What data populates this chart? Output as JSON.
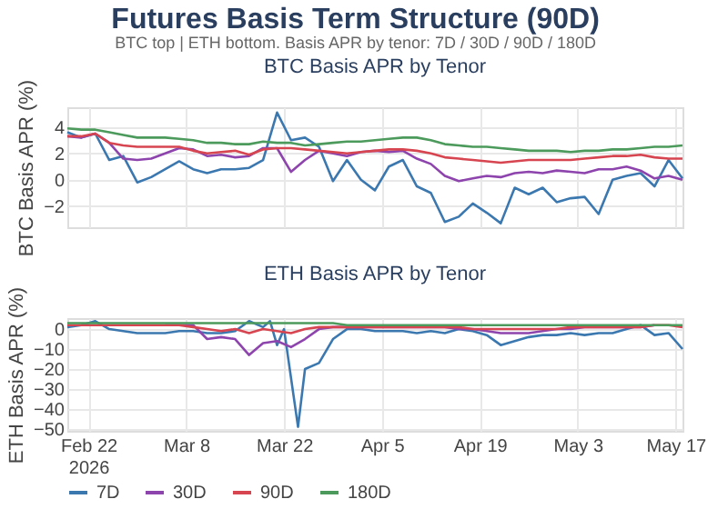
{
  "chart_data": [
    {
      "type": "line",
      "title": "Futures Basis Term Structure (90D)",
      "subtitle": "BTC top | ETH bottom. Basis APR by tenor: 7D / 30D / 90D / 180D",
      "annotations": [
        "BTC Basis APR by Tenor"
      ],
      "ylabel": "BTC Basis APR (%)",
      "x": [
        "2026-02-19",
        "2026-02-21",
        "2026-02-23",
        "2026-02-25",
        "2026-02-27",
        "2026-03-01",
        "2026-03-03",
        "2026-03-05",
        "2026-03-07",
        "2026-03-09",
        "2026-03-11",
        "2026-03-13",
        "2026-03-15",
        "2026-03-17",
        "2026-03-19",
        "2026-03-21",
        "2026-03-23",
        "2026-03-25",
        "2026-03-27",
        "2026-03-29",
        "2026-03-31",
        "2026-04-02",
        "2026-04-04",
        "2026-04-06",
        "2026-04-08",
        "2026-04-10",
        "2026-04-12",
        "2026-04-14",
        "2026-04-16",
        "2026-04-18",
        "2026-04-20",
        "2026-04-22",
        "2026-04-24",
        "2026-04-26",
        "2026-04-28",
        "2026-04-30",
        "2026-05-02",
        "2026-05-04",
        "2026-05-06",
        "2026-05-08",
        "2026-05-10",
        "2026-05-12",
        "2026-05-14",
        "2026-05-16",
        "2026-05-18"
      ],
      "series": [
        {
          "name": "7D",
          "color": "#3c78b0",
          "values": [
            3.6,
            3.2,
            3.5,
            1.5,
            1.8,
            -0.2,
            0.2,
            0.8,
            1.4,
            0.8,
            0.5,
            0.8,
            0.8,
            0.9,
            1.5,
            5.1,
            3.0,
            3.2,
            2.5,
            -0.1,
            1.5,
            0.0,
            -0.8,
            1.0,
            1.5,
            -0.5,
            -1.0,
            -3.2,
            -2.8,
            -1.8,
            -2.5,
            -3.3,
            -0.6,
            -1.1,
            -0.6,
            -1.7,
            -1.4,
            -1.3,
            -2.6,
            0.0,
            0.3,
            0.5,
            -0.5,
            1.5,
            0.1
          ]
        },
        {
          "name": "30D",
          "color": "#8e44ad",
          "values": [
            3.3,
            3.2,
            3.5,
            2.8,
            1.6,
            1.5,
            1.6,
            2.0,
            2.4,
            2.3,
            1.8,
            1.9,
            1.7,
            1.8,
            2.4,
            2.4,
            0.6,
            1.5,
            2.2,
            2.0,
            1.8,
            2.1,
            2.2,
            2.1,
            2.2,
            1.6,
            1.2,
            0.3,
            -0.1,
            0.1,
            0.3,
            0.2,
            0.5,
            0.6,
            0.5,
            0.7,
            0.6,
            0.5,
            0.8,
            0.8,
            1.0,
            0.7,
            0.1,
            0.3,
            0.0
          ]
        },
        {
          "name": "90D",
          "color": "#d64550",
          "values": [
            3.3,
            3.3,
            3.5,
            2.8,
            2.6,
            2.5,
            2.5,
            2.5,
            2.5,
            2.2,
            2.0,
            2.1,
            2.2,
            1.9,
            2.3,
            2.4,
            2.4,
            2.3,
            2.2,
            2.1,
            2.0,
            2.1,
            2.2,
            2.3,
            2.3,
            2.2,
            2.0,
            1.7,
            1.6,
            1.5,
            1.4,
            1.3,
            1.4,
            1.5,
            1.5,
            1.5,
            1.5,
            1.6,
            1.7,
            1.8,
            1.8,
            1.9,
            1.7,
            1.6,
            1.6
          ]
        },
        {
          "name": "180D",
          "color": "#4c9a5c",
          "values": [
            3.9,
            3.8,
            3.8,
            3.6,
            3.4,
            3.2,
            3.2,
            3.2,
            3.1,
            3.0,
            2.8,
            2.8,
            2.7,
            2.7,
            2.9,
            2.8,
            2.8,
            2.6,
            2.7,
            2.8,
            2.9,
            2.9,
            3.0,
            3.1,
            3.2,
            3.2,
            3.0,
            2.7,
            2.6,
            2.5,
            2.5,
            2.4,
            2.3,
            2.2,
            2.2,
            2.2,
            2.1,
            2.2,
            2.2,
            2.3,
            2.3,
            2.4,
            2.5,
            2.5,
            2.6
          ]
        }
      ],
      "xlim": [
        "2026-02-19",
        "2026-05-18"
      ],
      "xticks": [
        {
          "value": "2026-02-22",
          "label": null
        },
        {
          "value": "2026-03-08",
          "label": null
        },
        {
          "value": "2026-03-22",
          "label": null
        },
        {
          "value": "2026-04-05",
          "label": null
        },
        {
          "value": "2026-04-19",
          "label": null
        },
        {
          "value": "2026-05-03",
          "label": null
        },
        {
          "value": "2026-05-17",
          "label": null
        }
      ],
      "ylim": [
        -3.6,
        5.5
      ],
      "yticks": [
        -2,
        0,
        2,
        4
      ],
      "grid": true,
      "legend": "bottom",
      "tick_labels": "y"
    },
    {
      "type": "line",
      "title": "ETH Basis APR by Tenor",
      "ylabel": "ETH Basis APR (%)",
      "x": [
        "2026-02-19",
        "2026-02-21",
        "2026-02-23",
        "2026-02-25",
        "2026-02-27",
        "2026-03-01",
        "2026-03-03",
        "2026-03-05",
        "2026-03-07",
        "2026-03-09",
        "2026-03-11",
        "2026-03-13",
        "2026-03-15",
        "2026-03-17",
        "2026-03-19",
        "2026-03-21",
        "2026-03-23",
        "2026-03-25",
        "2026-03-27",
        "2026-03-29",
        "2026-03-31",
        "2026-04-02",
        "2026-04-04",
        "2026-04-06",
        "2026-04-08",
        "2026-04-10",
        "2026-04-12",
        "2026-04-14",
        "2026-04-16",
        "2026-04-18",
        "2026-04-20",
        "2026-04-22",
        "2026-04-24",
        "2026-04-26",
        "2026-04-28",
        "2026-04-30",
        "2026-05-02",
        "2026-05-04",
        "2026-05-06",
        "2026-05-08",
        "2026-05-10",
        "2026-05-12",
        "2026-05-14",
        "2026-05-16",
        "2026-05-18"
      ],
      "series": [
        {
          "name": "7D",
          "color": "#3c78b0",
          "x": [
            "2026-02-19",
            "2026-02-21",
            "2026-02-23",
            "2026-02-25",
            "2026-02-27",
            "2026-03-01",
            "2026-03-03",
            "2026-03-05",
            "2026-03-07",
            "2026-03-09",
            "2026-03-11",
            "2026-03-13",
            "2026-03-15",
            "2026-03-17",
            "2026-03-19",
            "2026-03-20",
            "2026-03-21",
            "2026-03-22",
            "2026-03-24",
            "2026-03-25",
            "2026-03-27",
            "2026-03-29",
            "2026-03-31",
            "2026-04-02",
            "2026-04-04",
            "2026-04-06",
            "2026-04-08",
            "2026-04-10",
            "2026-04-12",
            "2026-04-14",
            "2026-04-16",
            "2026-04-18",
            "2026-04-20",
            "2026-04-22",
            "2026-04-24",
            "2026-04-26",
            "2026-04-28",
            "2026-04-30",
            "2026-05-02",
            "2026-05-04",
            "2026-05-06",
            "2026-05-08",
            "2026-05-10",
            "2026-05-12",
            "2026-05-14",
            "2026-05-16",
            "2026-05-18"
          ],
          "values": [
            1,
            2,
            4,
            0,
            -1,
            -2,
            -2,
            -2,
            -1,
            -1,
            -2,
            -2,
            -1,
            4,
            1,
            4,
            -8,
            0,
            -49,
            -20,
            -17,
            -5,
            0,
            0,
            -1,
            -1,
            -1,
            -2,
            -1,
            -2,
            0,
            -1,
            -3,
            -8,
            -6,
            -4,
            -3,
            -3,
            -2,
            -3,
            -2,
            -2,
            0,
            2,
            -3,
            -2,
            -10
          ]
        },
        {
          "name": "30D",
          "color": "#8e44ad",
          "values": [
            null,
            null,
            null,
            null,
            null,
            null,
            null,
            2,
            2,
            2,
            -5,
            -4,
            -5,
            -13,
            -7,
            -6,
            -9,
            -5,
            0,
            1,
            1,
            1,
            1,
            1,
            1,
            1,
            1,
            1,
            0,
            0,
            -1,
            -2,
            -2,
            -2,
            -1,
            0,
            0,
            1,
            1,
            1,
            1,
            1,
            2,
            null,
            null
          ]
        },
        {
          "name": "90D",
          "color": "#d64550",
          "values": [
            2,
            2,
            2,
            2,
            2,
            2,
            2,
            2,
            2,
            1,
            0,
            -1,
            0,
            -2,
            0,
            -1,
            -2,
            0,
            1,
            1,
            1,
            1,
            1,
            1,
            1,
            1,
            1,
            1,
            1,
            0,
            0,
            0,
            0,
            0,
            0,
            0,
            1,
            1,
            1,
            1,
            1,
            1,
            2,
            2,
            1
          ]
        },
        {
          "name": "180D",
          "color": "#4c9a5c",
          "values": [
            3,
            3,
            3,
            3,
            3,
            3,
            3,
            3,
            3,
            3,
            3,
            3,
            3,
            3,
            3,
            3,
            3,
            3,
            3,
            3,
            2,
            2,
            2,
            2,
            2,
            2,
            2,
            2,
            2,
            2,
            2,
            2,
            2,
            2,
            2,
            2,
            2,
            2,
            2,
            2,
            2,
            2,
            2,
            2,
            2
          ]
        }
      ],
      "xlim": [
        "2026-02-19",
        "2026-05-18"
      ],
      "xticks": [
        {
          "value": "2026-02-22",
          "label": "Feb 22\n2026"
        },
        {
          "value": "2026-03-08",
          "label": "Mar 8"
        },
        {
          "value": "2026-03-22",
          "label": "Mar 22"
        },
        {
          "value": "2026-04-05",
          "label": "Apr 5"
        },
        {
          "value": "2026-04-19",
          "label": "Apr 19"
        },
        {
          "value": "2026-05-03",
          "label": "May 3"
        },
        {
          "value": "2026-05-17",
          "label": "May 17"
        }
      ],
      "ylim": [
        -51,
        5.5
      ],
      "yticks": [
        -50,
        -40,
        -30,
        -20,
        -10,
        0
      ],
      "grid": true,
      "legend": "bottom"
    }
  ]
}
